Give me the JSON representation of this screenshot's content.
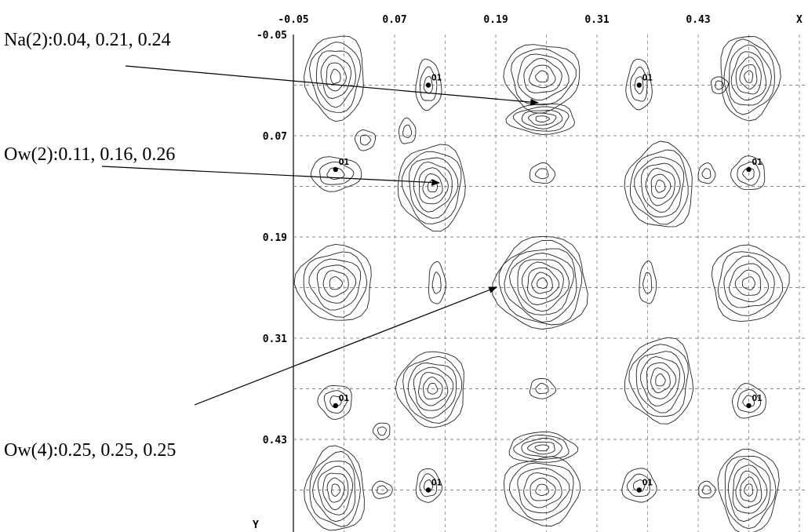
{
  "chart_data": {
    "type": "contour",
    "x_axis": {
      "label": "X",
      "ticks": [
        "-0.05",
        "0.07",
        "0.19",
        "0.31",
        "0.43"
      ],
      "range": [
        -0.05,
        0.55
      ]
    },
    "y_axis": {
      "label": "Y",
      "ticks": [
        "-0.05",
        "0.07",
        "0.19",
        "0.31",
        "0.43"
      ],
      "range": [
        -0.05,
        0.55
      ],
      "inverted": true
    },
    "grid": true,
    "grid_style": "dashed",
    "atoms": [
      {
        "label": "O1",
        "x": 0.11,
        "y": 0.01
      },
      {
        "label": "O1",
        "x": 0.36,
        "y": 0.01
      },
      {
        "label": "O1",
        "x": 0.0,
        "y": 0.11
      },
      {
        "label": "O1",
        "x": 0.49,
        "y": 0.11
      },
      {
        "label": "O1",
        "x": 0.0,
        "y": 0.39
      },
      {
        "label": "O1",
        "x": 0.49,
        "y": 0.39
      },
      {
        "label": "O1",
        "x": 0.11,
        "y": 0.49
      },
      {
        "label": "O1",
        "x": 0.36,
        "y": 0.49
      }
    ],
    "peaks": [
      {
        "x": 0.0,
        "y": 0.0,
        "rx": 0.035,
        "ry": 0.05,
        "levels": 6
      },
      {
        "x": 0.49,
        "y": 0.0,
        "rx": 0.035,
        "ry": 0.05,
        "levels": 7
      },
      {
        "x": 0.0,
        "y": 0.49,
        "rx": 0.035,
        "ry": 0.05,
        "levels": 7
      },
      {
        "x": 0.49,
        "y": 0.49,
        "rx": 0.035,
        "ry": 0.05,
        "levels": 7
      },
      {
        "x": 0.245,
        "y": 0.245,
        "rx": 0.055,
        "ry": 0.055,
        "levels": 9
      },
      {
        "x": 0.245,
        "y": 0.0,
        "rx": 0.045,
        "ry": 0.04,
        "levels": 6
      },
      {
        "x": 0.245,
        "y": 0.05,
        "rx": 0.04,
        "ry": 0.018,
        "levels": 5
      },
      {
        "x": 0.245,
        "y": 0.49,
        "rx": 0.045,
        "ry": 0.04,
        "levels": 6
      },
      {
        "x": 0.245,
        "y": 0.44,
        "rx": 0.04,
        "ry": 0.018,
        "levels": 5
      },
      {
        "x": 0.0,
        "y": 0.245,
        "rx": 0.045,
        "ry": 0.045,
        "levels": 6
      },
      {
        "x": 0.49,
        "y": 0.245,
        "rx": 0.045,
        "ry": 0.045,
        "levels": 6
      },
      {
        "x": 0.115,
        "y": 0.13,
        "rx": 0.04,
        "ry": 0.05,
        "levels": 7
      },
      {
        "x": 0.385,
        "y": 0.13,
        "rx": 0.04,
        "ry": 0.05,
        "levels": 7
      },
      {
        "x": 0.115,
        "y": 0.37,
        "rx": 0.04,
        "ry": 0.045,
        "levels": 7
      },
      {
        "x": 0.385,
        "y": 0.36,
        "rx": 0.04,
        "ry": 0.05,
        "levels": 7
      },
      {
        "x": 0.11,
        "y": 0.01,
        "rx": 0.015,
        "ry": 0.03,
        "levels": 3
      },
      {
        "x": 0.36,
        "y": 0.01,
        "rx": 0.015,
        "ry": 0.03,
        "levels": 3
      },
      {
        "x": 0.0,
        "y": 0.115,
        "rx": 0.03,
        "ry": 0.02,
        "levels": 3
      },
      {
        "x": 0.49,
        "y": 0.115,
        "rx": 0.02,
        "ry": 0.02,
        "levels": 3
      },
      {
        "x": 0.0,
        "y": 0.385,
        "rx": 0.02,
        "ry": 0.02,
        "levels": 3
      },
      {
        "x": 0.49,
        "y": 0.385,
        "rx": 0.02,
        "ry": 0.02,
        "levels": 3
      },
      {
        "x": 0.11,
        "y": 0.485,
        "rx": 0.015,
        "ry": 0.02,
        "levels": 3
      },
      {
        "x": 0.36,
        "y": 0.485,
        "rx": 0.02,
        "ry": 0.02,
        "levels": 3
      },
      {
        "x": 0.245,
        "y": 0.115,
        "rx": 0.015,
        "ry": 0.012,
        "levels": 2
      },
      {
        "x": 0.245,
        "y": 0.37,
        "rx": 0.015,
        "ry": 0.012,
        "levels": 2
      },
      {
        "x": 0.12,
        "y": 0.245,
        "rx": 0.01,
        "ry": 0.025,
        "levels": 2
      },
      {
        "x": 0.37,
        "y": 0.245,
        "rx": 0.01,
        "ry": 0.025,
        "levels": 2
      },
      {
        "x": 0.035,
        "y": 0.075,
        "rx": 0.012,
        "ry": 0.012,
        "levels": 2
      },
      {
        "x": 0.085,
        "y": 0.065,
        "rx": 0.01,
        "ry": 0.015,
        "levels": 2
      },
      {
        "x": 0.055,
        "y": 0.42,
        "rx": 0.01,
        "ry": 0.01,
        "levels": 2
      },
      {
        "x": 0.055,
        "y": 0.49,
        "rx": 0.012,
        "ry": 0.01,
        "levels": 2
      },
      {
        "x": 0.44,
        "y": 0.115,
        "rx": 0.01,
        "ry": 0.012,
        "levels": 2
      },
      {
        "x": 0.455,
        "y": 0.01,
        "rx": 0.01,
        "ry": 0.01,
        "levels": 2
      },
      {
        "x": 0.44,
        "y": 0.49,
        "rx": 0.01,
        "ry": 0.01,
        "levels": 2
      }
    ],
    "annotations": [
      {
        "text": "Na(2):0.04, 0.21, 0.24",
        "target_x": 0.24,
        "target_y": 0.04
      },
      {
        "text": "Ow(2):0.11, 0.16, 0.26",
        "target_x": 0.115,
        "target_y": 0.12
      },
      {
        "text": "Ow(4):0.25, 0.25, 0.25",
        "target_x": 0.225,
        "target_y": 0.245
      }
    ]
  }
}
